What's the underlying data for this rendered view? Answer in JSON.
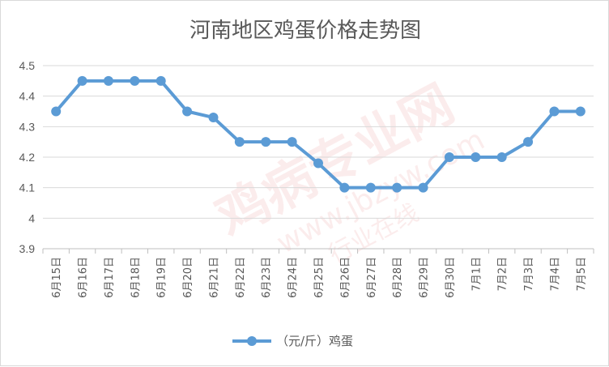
{
  "chart_data": {
    "type": "line",
    "title": "河南地区鸡蛋价格走势图",
    "categories": [
      "6月15日",
      "6月16日",
      "6月17日",
      "6月18日",
      "6月19日",
      "6月20日",
      "6月21日",
      "6月22日",
      "6月23日",
      "6月24日",
      "6月25日",
      "6月26日",
      "6月27日",
      "6月28日",
      "6月29日",
      "6月30日",
      "7月1日",
      "7月2日",
      "7月3日",
      "7月4日",
      "7月5日"
    ],
    "series": [
      {
        "name": "（元/斤）鸡蛋",
        "color": "#5b9bd5",
        "values": [
          4.35,
          4.45,
          4.45,
          4.45,
          4.45,
          4.35,
          4.33,
          4.25,
          4.25,
          4.25,
          4.18,
          4.1,
          4.1,
          4.1,
          4.1,
          4.2,
          4.2,
          4.2,
          4.25,
          4.35,
          4.35
        ]
      }
    ],
    "yticks": [
      "3.9",
      "4",
      "4.1",
      "4.2",
      "4.3",
      "4.4",
      "4.5"
    ],
    "ylim": [
      3.9,
      4.5
    ],
    "grid": true,
    "legend": "bottom-center"
  },
  "watermark": {
    "main": "鸡病专业网",
    "url": "www.jbzyw.com",
    "slogan": "行业在线"
  }
}
